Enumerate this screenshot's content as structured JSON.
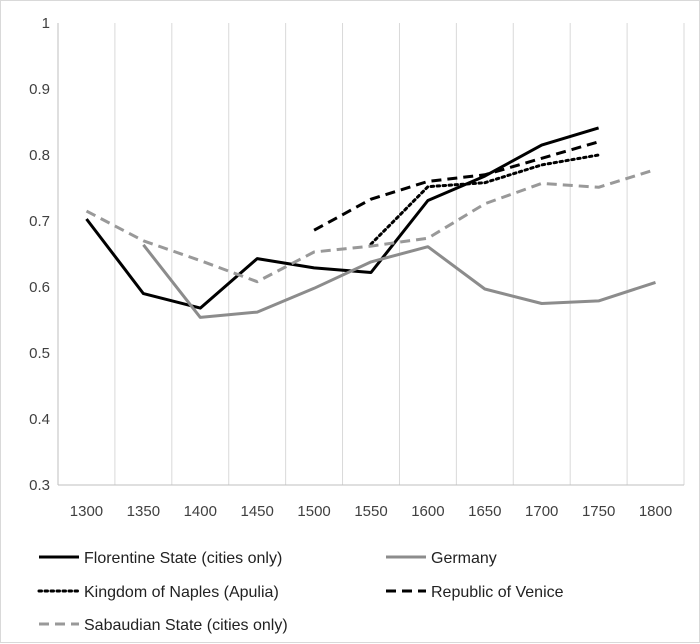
{
  "chart_data": {
    "type": "line",
    "title": "",
    "xlabel": "",
    "ylabel": "",
    "categories": [
      "1300",
      "1350",
      "1400",
      "1450",
      "1500",
      "1550",
      "1600",
      "1650",
      "1700",
      "1750",
      "1800"
    ],
    "ylim": [
      0.3,
      1.0
    ],
    "y_ticks": [
      "0.3",
      "0.4",
      "0.5",
      "0.6",
      "0.7",
      "0.8",
      "0.9",
      "1"
    ],
    "grid": "vertical",
    "legend_position": "bottom",
    "series": [
      {
        "name": "Florentine State (cities only)",
        "color": "#000000",
        "dash": "solid",
        "values": [
          0.703,
          0.59,
          0.568,
          0.643,
          0.629,
          0.622,
          0.731,
          0.768,
          0.815,
          0.841,
          null
        ]
      },
      {
        "name": "Germany",
        "color": "#8c8c8c",
        "dash": "solid",
        "values": [
          null,
          0.664,
          0.554,
          0.562,
          0.598,
          0.638,
          0.661,
          0.597,
          0.575,
          0.579,
          0.607
        ]
      },
      {
        "name": "Kingdom of Naples (Apulia)",
        "color": "#000000",
        "dash": "dotted",
        "values": [
          null,
          null,
          null,
          null,
          null,
          0.665,
          0.752,
          0.758,
          0.785,
          0.8,
          null
        ]
      },
      {
        "name": "Republic of Venice",
        "color": "#000000",
        "dash": "dashed",
        "values": [
          null,
          null,
          null,
          null,
          0.686,
          0.733,
          0.76,
          0.77,
          0.795,
          0.82,
          null
        ]
      },
      {
        "name": "Sabaudian State (cities only)",
        "color": "#999999",
        "dash": "dashed",
        "values": [
          0.715,
          0.67,
          0.64,
          0.608,
          0.653,
          0.662,
          0.674,
          0.726,
          0.757,
          0.751,
          0.778
        ]
      }
    ]
  }
}
